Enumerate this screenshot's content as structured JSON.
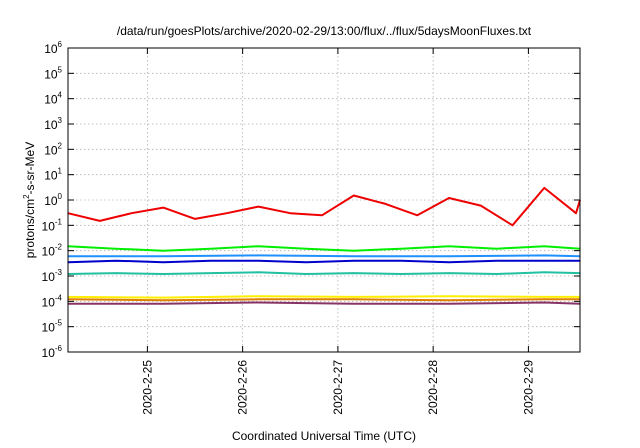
{
  "chart_data": {
    "type": "line",
    "title": "/data/run/goesPlots/archive/2020-02-29/13:00/flux/../flux/5daysMoonFluxes.txt",
    "xlabel": "Coordinated Universal Time (UTC)",
    "ylabel": "protons/cm²-s-sr-MeV",
    "ylabel_parts": {
      "pre": "protons/cm",
      "sup": "2",
      "post": "-s-sr-MeV"
    },
    "y_scale": "log",
    "ylim_exponents": [
      -6,
      6
    ],
    "y_ticks": [
      {
        "base": "10",
        "exp": "-6"
      },
      {
        "base": "10",
        "exp": "-5"
      },
      {
        "base": "10",
        "exp": "-4"
      },
      {
        "base": "10",
        "exp": "-3"
      },
      {
        "base": "10",
        "exp": "-2"
      },
      {
        "base": "10",
        "exp": "-1"
      },
      {
        "base": "10",
        "exp": "0"
      },
      {
        "base": "10",
        "exp": "1"
      },
      {
        "base": "10",
        "exp": "2"
      },
      {
        "base": "10",
        "exp": "3"
      },
      {
        "base": "10",
        "exp": "4"
      },
      {
        "base": "10",
        "exp": "5"
      },
      {
        "base": "10",
        "exp": "6"
      }
    ],
    "xlim": [
      "2020-02-24 04:00",
      "2020-02-29 13:00"
    ],
    "x_ticks": [
      "2020-2-25",
      "2020-2-26",
      "2020-2-27",
      "2020-2-28",
      "2020-2-29"
    ],
    "grid": true,
    "series": [
      {
        "color": "#ee0000",
        "x": [
          "2020-02-24 04:00",
          "2020-02-24 12:00",
          "2020-02-24 20:00",
          "2020-02-25 04:00",
          "2020-02-25 12:00",
          "2020-02-25 20:00",
          "2020-02-26 04:00",
          "2020-02-26 12:00",
          "2020-02-26 20:00",
          "2020-02-27 04:00",
          "2020-02-27 12:00",
          "2020-02-27 20:00",
          "2020-02-28 04:00",
          "2020-02-28 12:00",
          "2020-02-28 20:00",
          "2020-02-29 04:00",
          "2020-02-29 12:00",
          "2020-02-29 13:00"
        ],
        "y": [
          0.3,
          0.15,
          0.3,
          0.5,
          0.18,
          0.3,
          0.55,
          0.3,
          0.25,
          1.5,
          0.7,
          0.25,
          1.2,
          0.6,
          0.1,
          3.0,
          0.3,
          1.0
        ]
      },
      {
        "color": "#00ee00",
        "x": [
          "2020-02-24 04:00",
          "2020-02-24 16:00",
          "2020-02-25 04:00",
          "2020-02-25 16:00",
          "2020-02-26 04:00",
          "2020-02-26 16:00",
          "2020-02-27 04:00",
          "2020-02-27 16:00",
          "2020-02-28 04:00",
          "2020-02-28 16:00",
          "2020-02-29 04:00",
          "2020-02-29 13:00"
        ],
        "y": [
          0.015,
          0.012,
          0.01,
          0.012,
          0.015,
          0.012,
          0.01,
          0.012,
          0.015,
          0.012,
          0.015,
          0.012
        ]
      },
      {
        "color": "#0000cc",
        "x": [
          "2020-02-24 04:00",
          "2020-02-24 16:00",
          "2020-02-25 04:00",
          "2020-02-25 16:00",
          "2020-02-26 04:00",
          "2020-02-26 16:00",
          "2020-02-27 04:00",
          "2020-02-27 16:00",
          "2020-02-28 04:00",
          "2020-02-28 16:00",
          "2020-02-29 04:00",
          "2020-02-29 13:00"
        ],
        "y": [
          0.0035,
          0.004,
          0.0035,
          0.004,
          0.004,
          0.0035,
          0.004,
          0.004,
          0.0035,
          0.004,
          0.004,
          0.004
        ]
      },
      {
        "color": "#1e90ff",
        "x": [
          "2020-02-24 04:00",
          "2020-02-25 04:00",
          "2020-02-26 04:00",
          "2020-02-27 04:00",
          "2020-02-28 04:00",
          "2020-02-29 04:00",
          "2020-02-29 13:00"
        ],
        "y": [
          0.006,
          0.006,
          0.0065,
          0.006,
          0.006,
          0.0065,
          0.006
        ]
      },
      {
        "color": "#20c0a0",
        "x": [
          "2020-02-24 04:00",
          "2020-02-24 16:00",
          "2020-02-25 04:00",
          "2020-02-25 16:00",
          "2020-02-26 04:00",
          "2020-02-26 16:00",
          "2020-02-27 04:00",
          "2020-02-27 16:00",
          "2020-02-28 04:00",
          "2020-02-28 16:00",
          "2020-02-29 04:00",
          "2020-02-29 13:00"
        ],
        "y": [
          0.0012,
          0.0013,
          0.0012,
          0.0013,
          0.0014,
          0.0012,
          0.0013,
          0.0012,
          0.0013,
          0.0012,
          0.0014,
          0.0013
        ]
      },
      {
        "color": "#ffee00",
        "x": [
          "2020-02-24 04:00",
          "2020-02-25 04:00",
          "2020-02-26 04:00",
          "2020-02-27 04:00",
          "2020-02-28 04:00",
          "2020-02-29 04:00",
          "2020-02-29 13:00"
        ],
        "y": [
          0.00015,
          0.00014,
          0.00016,
          0.00015,
          0.00016,
          0.00015,
          0.00015
        ]
      },
      {
        "color": "#e08000",
        "x": [
          "2020-02-24 04:00",
          "2020-02-25 04:00",
          "2020-02-26 04:00",
          "2020-02-27 04:00",
          "2020-02-28 04:00",
          "2020-02-29 04:00",
          "2020-02-29 13:00"
        ],
        "y": [
          0.00012,
          0.00011,
          0.00012,
          0.00012,
          0.00011,
          0.00012,
          0.00012
        ]
      },
      {
        "color": "#883366",
        "x": [
          "2020-02-24 04:00",
          "2020-02-25 04:00",
          "2020-02-26 04:00",
          "2020-02-27 04:00",
          "2020-02-28 04:00",
          "2020-02-29 04:00",
          "2020-02-29 13:00"
        ],
        "y": [
          8e-05,
          8e-05,
          9e-05,
          8e-05,
          8e-05,
          9e-05,
          8e-05
        ]
      }
    ]
  }
}
